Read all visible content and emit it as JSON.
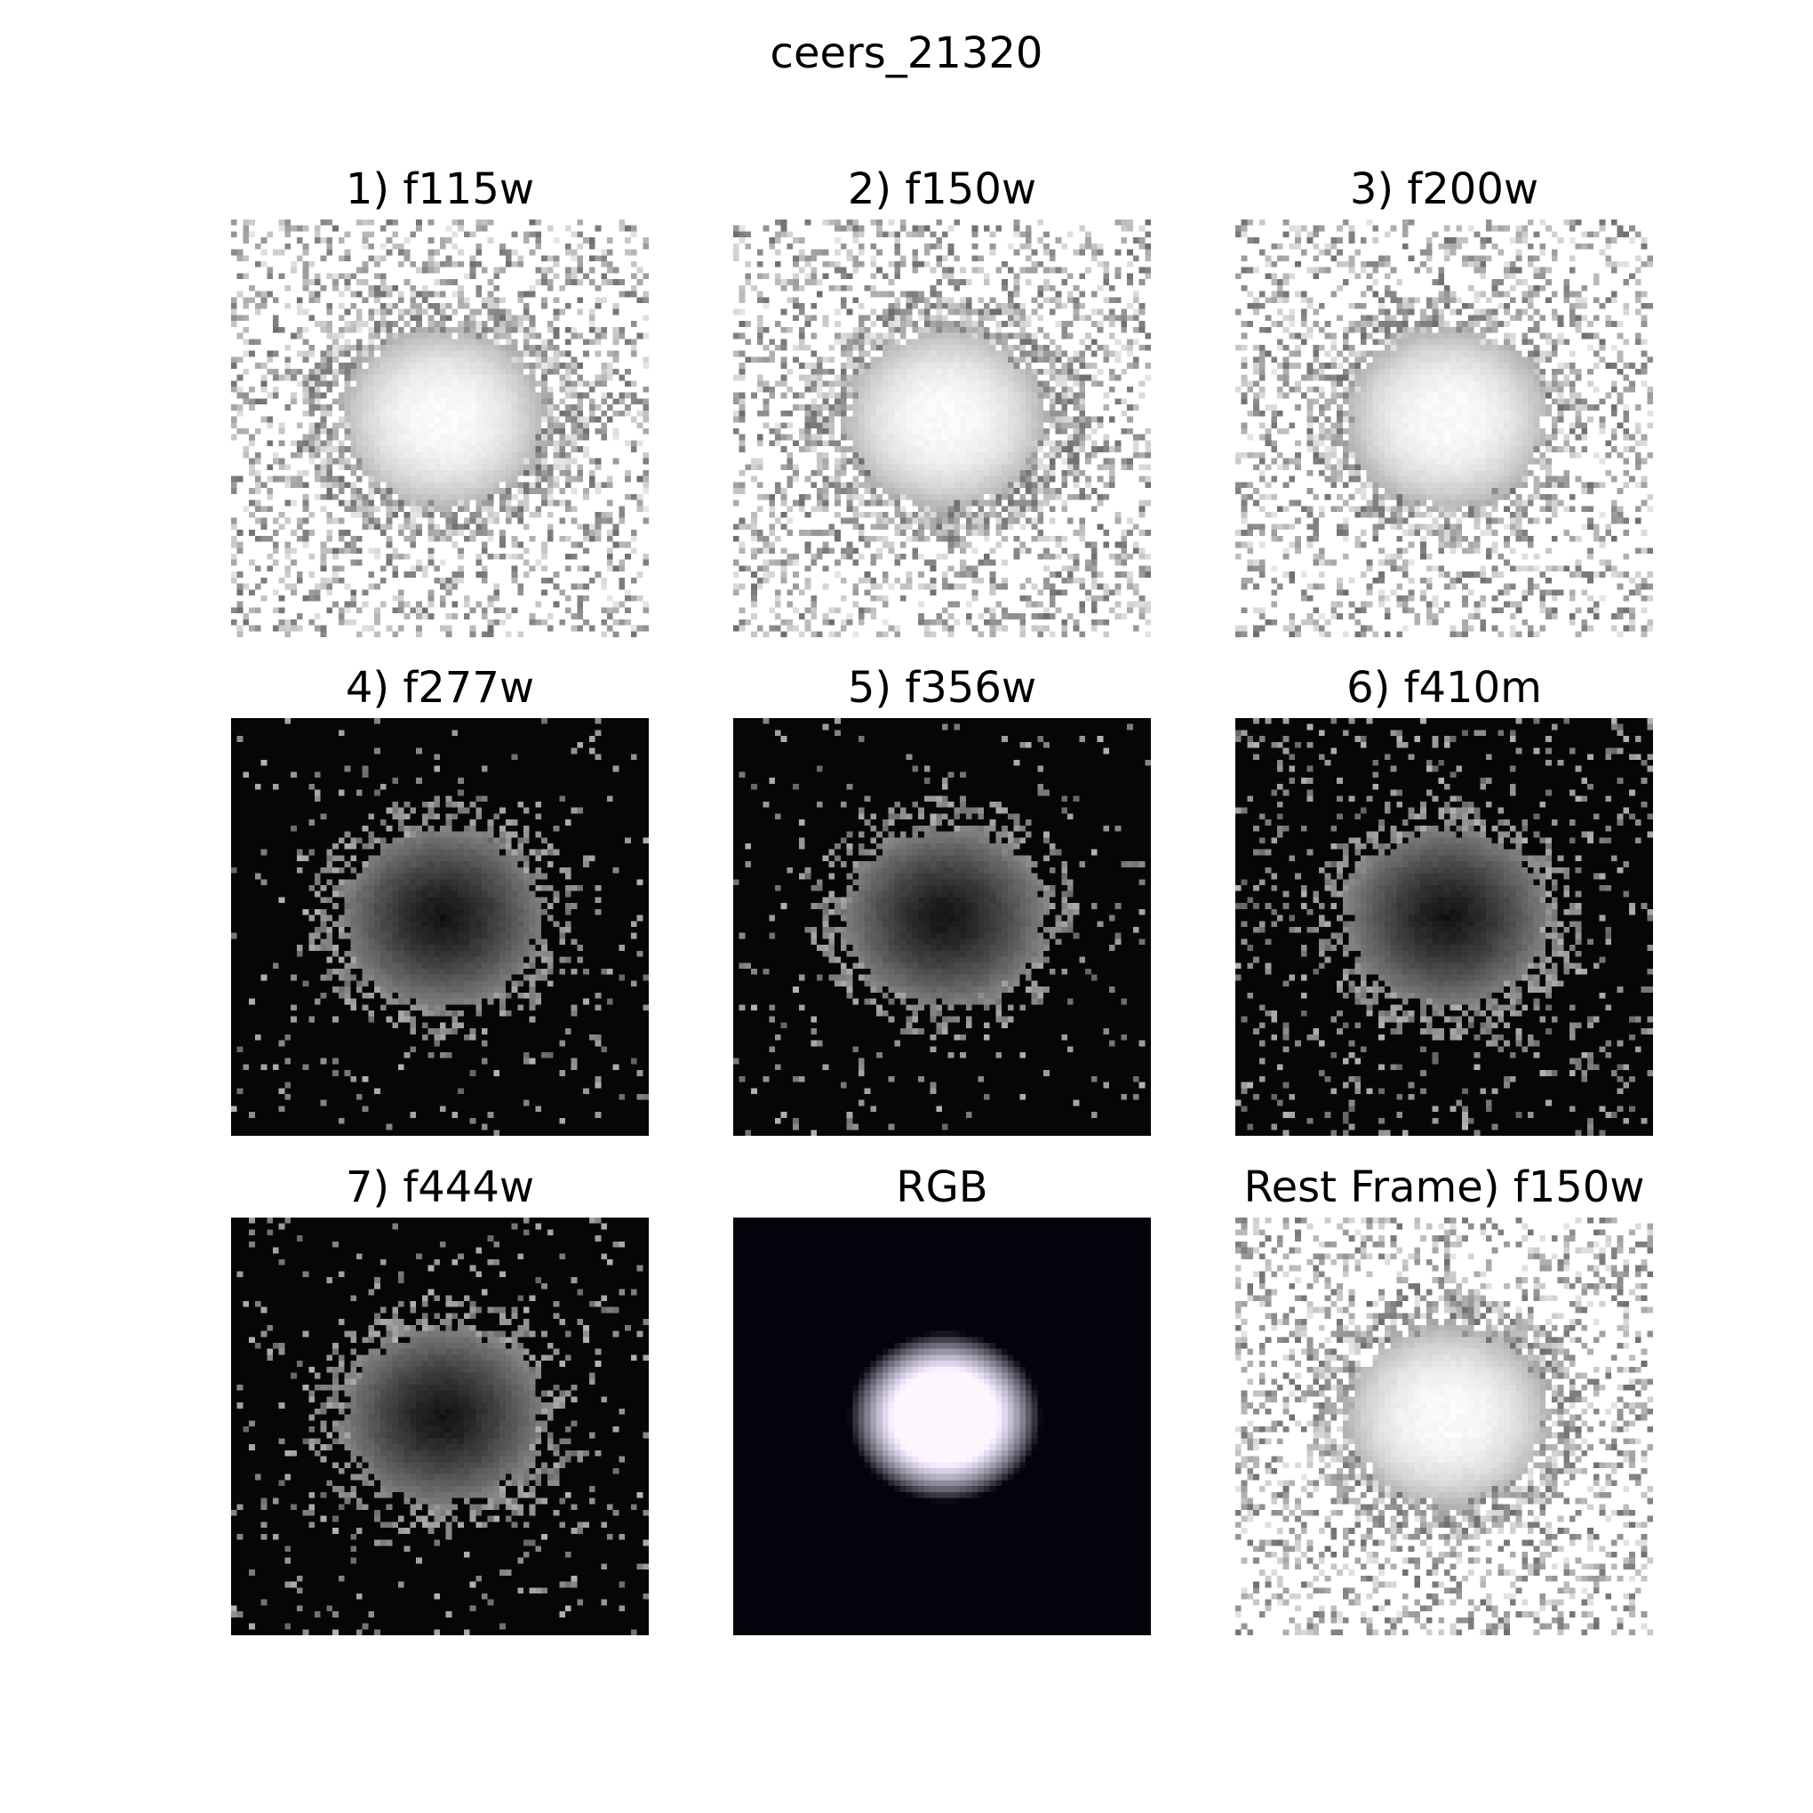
{
  "figure": {
    "title": "ceers_21320"
  },
  "panels": [
    {
      "title": "1) f115w",
      "mode": "inverted",
      "noise": 0.62,
      "core": 0.55,
      "seed": 11
    },
    {
      "title": "2) f150w",
      "mode": "inverted",
      "noise": 0.62,
      "core": 0.55,
      "seed": 23
    },
    {
      "title": "3) f200w",
      "mode": "inverted",
      "noise": 0.55,
      "core": 0.58,
      "seed": 37
    },
    {
      "title": "4) f277w",
      "mode": "dark",
      "noise": 0.05,
      "core": 0.6,
      "seed": 41
    },
    {
      "title": "5) f356w",
      "mode": "dark",
      "noise": 0.05,
      "core": 0.6,
      "seed": 53
    },
    {
      "title": "6) f410m",
      "mode": "dark",
      "noise": 0.12,
      "core": 0.6,
      "seed": 67
    },
    {
      "title": "7) f444w",
      "mode": "dark",
      "noise": 0.07,
      "core": 0.6,
      "seed": 79
    },
    {
      "title": "RGB",
      "mode": "rgb",
      "noise": 0.0,
      "core": 0.45,
      "seed": 83
    },
    {
      "title": "Rest Frame) f150w",
      "mode": "inverted",
      "noise": 0.6,
      "core": 0.52,
      "seed": 97
    }
  ]
}
